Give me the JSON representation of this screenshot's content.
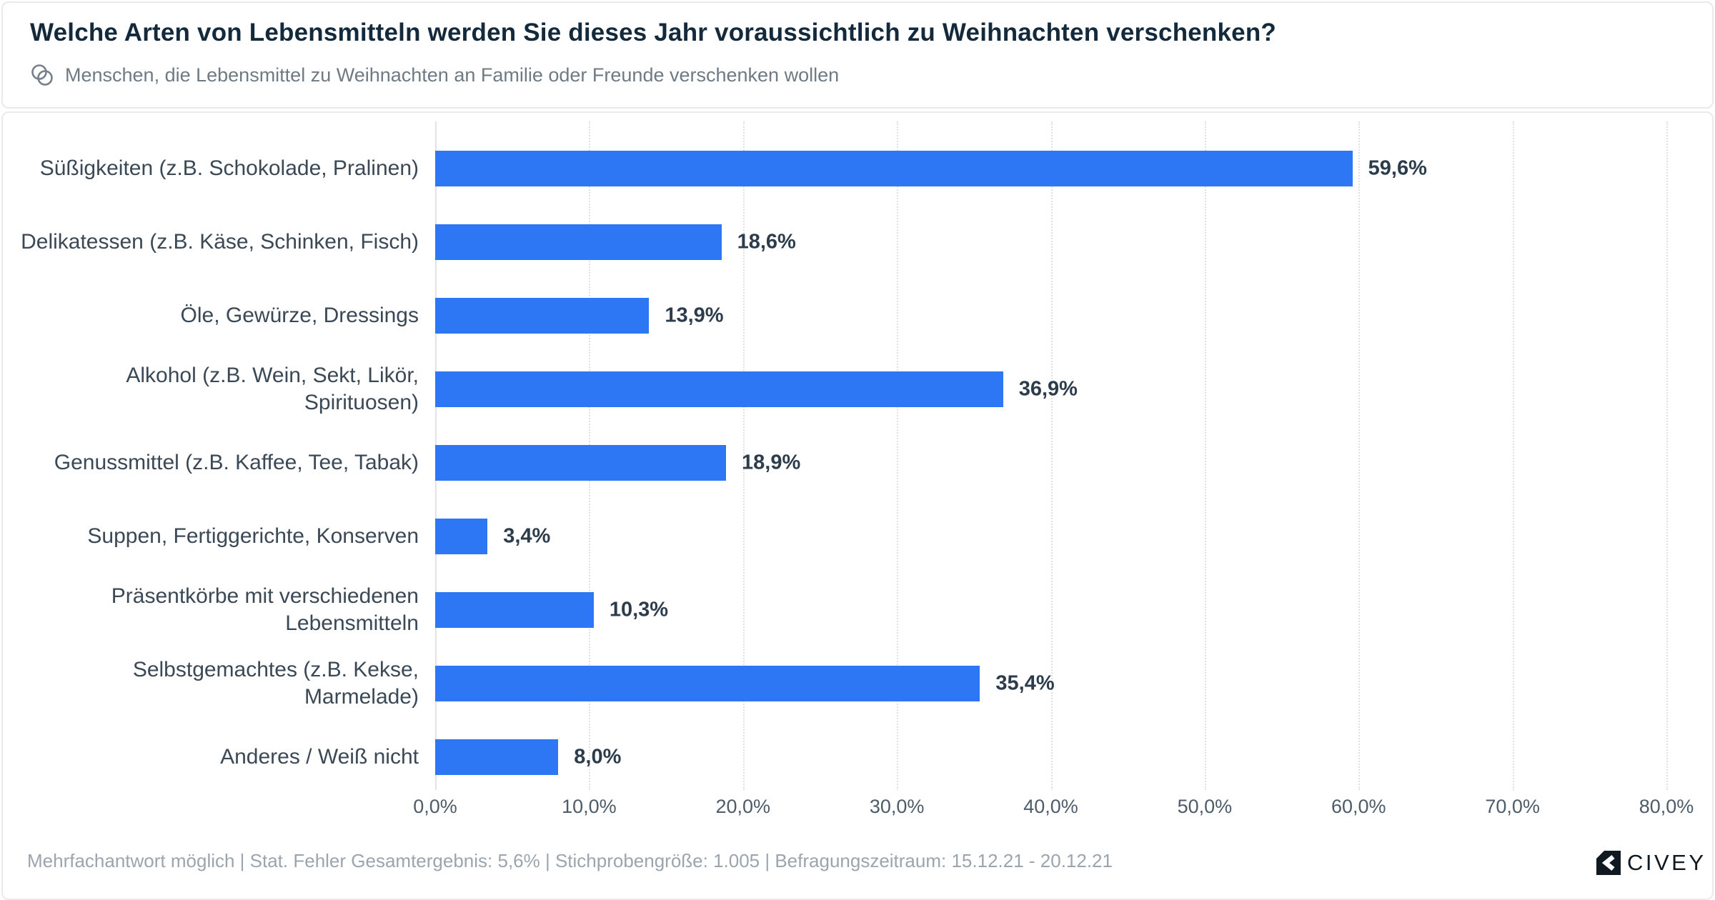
{
  "header": {
    "title": "Welche Arten von Lebensmitteln werden Sie dieses Jahr voraussichtlich zu Weihnachten verschenken?",
    "subtitle": "Menschen, die Lebensmittel zu Weihnachten an Familie oder Freunde verschenken wollen",
    "subtitle_icon": "venn-overlapping-circles-icon"
  },
  "chart_data": {
    "type": "bar",
    "orientation": "horizontal",
    "title": "Welche Arten von Lebensmitteln werden Sie dieses Jahr voraussichtlich zu Weihnachten verschenken?",
    "categories": [
      "Süßigkeiten (z.B. Schokolade, Pralinen)",
      "Delikatessen (z.B. Käse, Schinken, Fisch)",
      "Öle, Gewürze, Dressings",
      "Alkohol (z.B. Wein, Sekt, Likör, Spirituosen)",
      "Genussmittel (z.B. Kaffee, Tee, Tabak)",
      "Suppen, Fertiggerichte, Konserven",
      "Präsentkörbe mit verschiedenen Lebensmitteln",
      "Selbstgemachtes (z.B. Kekse, Marmelade)",
      "Anderes / Weiß nicht"
    ],
    "values": [
      59.6,
      18.6,
      13.9,
      36.9,
      18.9,
      3.4,
      10.3,
      35.4,
      8.0
    ],
    "value_labels": [
      "59,6%",
      "18,6%",
      "13,9%",
      "36,9%",
      "18,9%",
      "3,4%",
      "10,3%",
      "35,4%",
      "8,0%"
    ],
    "xlabel": "",
    "ylabel": "",
    "xlim": [
      0,
      80
    ],
    "x_tick_labels": [
      "0,0%",
      "10,0%",
      "20,0%",
      "30,0%",
      "40,0%",
      "50,0%",
      "60,0%",
      "70,0%",
      "80,0%"
    ],
    "grid": "vertical dotted gridlines at every 10%",
    "legend": "none",
    "bar_color": "#2d77f5"
  },
  "footer": {
    "note": "Mehrfachantwort möglich | Stat. Fehler Gesamtergebnis: 5,6% | Stichprobengröße: 1.005 | Befragungszeitraum: 15.12.21 - 20.12.21",
    "brand": "CIVEY"
  },
  "colors": {
    "accent_bar": "#2d77f5",
    "title_text": "#13293c",
    "subtitle_text": "#6e7a84",
    "category_text": "#3b4855",
    "value_text": "#2d3c4b",
    "tick_text": "#4d5c68",
    "footer_text": "#9ca5ad",
    "gridline": "#dfe1e3",
    "card_border": "#e9eaeb",
    "logo_black": "#101820"
  }
}
